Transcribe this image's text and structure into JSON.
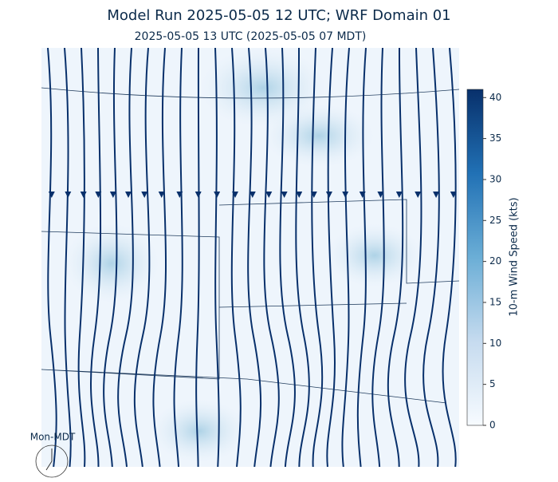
{
  "header": {
    "title": "Model Run 2025-05-05 12 UTC; WRF Domain 01",
    "subtitle": "2025-05-05 13 UTC  (2025-05-05 07 MDT)"
  },
  "colorbar": {
    "label": "10-m Wind Speed (kts)",
    "lim": [
      0,
      41
    ],
    "ticks": [
      0,
      5,
      10,
      15,
      20,
      25,
      30,
      35,
      40
    ]
  },
  "clock": {
    "label": "Mon-MDT"
  }
}
